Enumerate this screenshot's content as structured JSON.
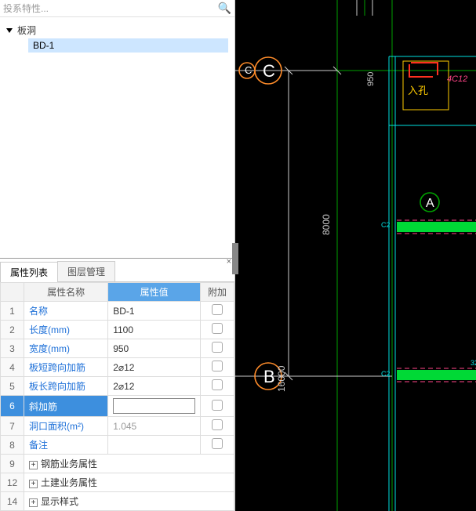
{
  "search": {
    "placeholder": "投系特性..."
  },
  "tree": {
    "root_label": "板洞",
    "child_label": "BD-1"
  },
  "tabs": {
    "props": "属性列表",
    "layers": "图层管理"
  },
  "prop_header": {
    "name": "属性名称",
    "value": "属性值",
    "extra": "附加"
  },
  "rows": [
    {
      "n": "1",
      "name": "名称",
      "val": "BD-1",
      "chk": true
    },
    {
      "n": "2",
      "name": "长度(mm)",
      "val": "1100",
      "chk": true
    },
    {
      "n": "3",
      "name": "宽度(mm)",
      "val": "950",
      "chk": true
    },
    {
      "n": "4",
      "name": "板短跨向加筋",
      "val": "2⌀12",
      "chk": true
    },
    {
      "n": "5",
      "name": "板长跨向加筋",
      "val": "2⌀12",
      "chk": true
    },
    {
      "n": "6",
      "name": "斜加筋",
      "val": "",
      "chk": true,
      "sel": true,
      "editing": true
    },
    {
      "n": "7",
      "name": "洞口面积(m²)",
      "val": "1.045",
      "chk": true,
      "gray": true
    },
    {
      "n": "8",
      "name": "备注",
      "val": "",
      "chk": true
    },
    {
      "n": "9",
      "name": "钢筋业务属性",
      "expand": true
    },
    {
      "n": "12",
      "name": "土建业务属性",
      "expand": true
    },
    {
      "n": "14",
      "name": "显示样式",
      "expand": true
    }
  ],
  "cad": {
    "bg": "#000000",
    "grid_green": "#00a000",
    "dim_white": "#cccccc",
    "yellow": "#ffcc00",
    "cyan": "#00e0e0",
    "magenta": "#ff4488",
    "red": "#ff3020",
    "lime": "#00ff40",
    "orange_circle": "#ff8c2a",
    "labels": {
      "C1": "C",
      "C2": "C",
      "B": "B",
      "A": "A",
      "d950": "950",
      "d8000": "8000",
      "d16000": "16000",
      "rk": "入孔",
      "rebar": "4C12"
    }
  }
}
